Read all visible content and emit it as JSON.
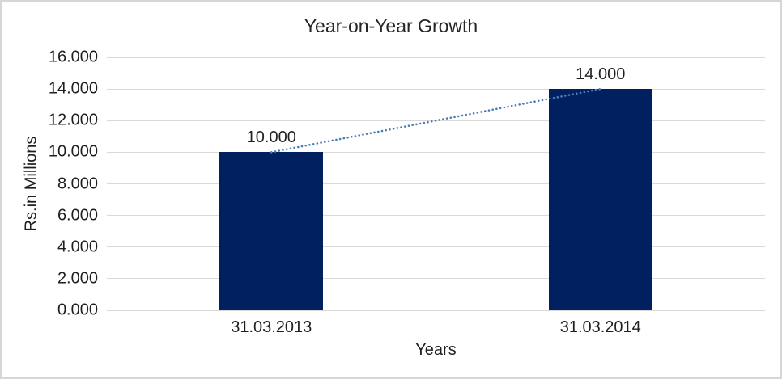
{
  "frame": {
    "background": "#ffffff",
    "border_color": "#d6d6d6"
  },
  "chart_data": {
    "type": "bar",
    "title": "Year-on-Year Growth",
    "xlabel": "Years",
    "ylabel": "Rs.in Millions",
    "categories": [
      "31.03.2013",
      "31.03.2014"
    ],
    "values": [
      10000,
      14000
    ],
    "value_labels": [
      "10.000",
      "14.000"
    ],
    "bar_color": "#002060",
    "ylim": [
      0,
      16000
    ],
    "y_ticks": [
      {
        "value": 0,
        "label": "0.000"
      },
      {
        "value": 2000,
        "label": "2.000"
      },
      {
        "value": 4000,
        "label": "4.000"
      },
      {
        "value": 6000,
        "label": "6.000"
      },
      {
        "value": 8000,
        "label": "8.000"
      },
      {
        "value": 10000,
        "label": "10.000"
      },
      {
        "value": 12000,
        "label": "12.000"
      },
      {
        "value": 14000,
        "label": "14.000"
      },
      {
        "value": 16000,
        "label": "16.000"
      }
    ],
    "grid": "horizontal",
    "gridline_color": "#d9d9d9",
    "legend": "none",
    "trendline": {
      "type": "linear",
      "style": "dotted",
      "color": "#4a7ebb",
      "from_value": 10000,
      "to_value": 14000
    }
  }
}
